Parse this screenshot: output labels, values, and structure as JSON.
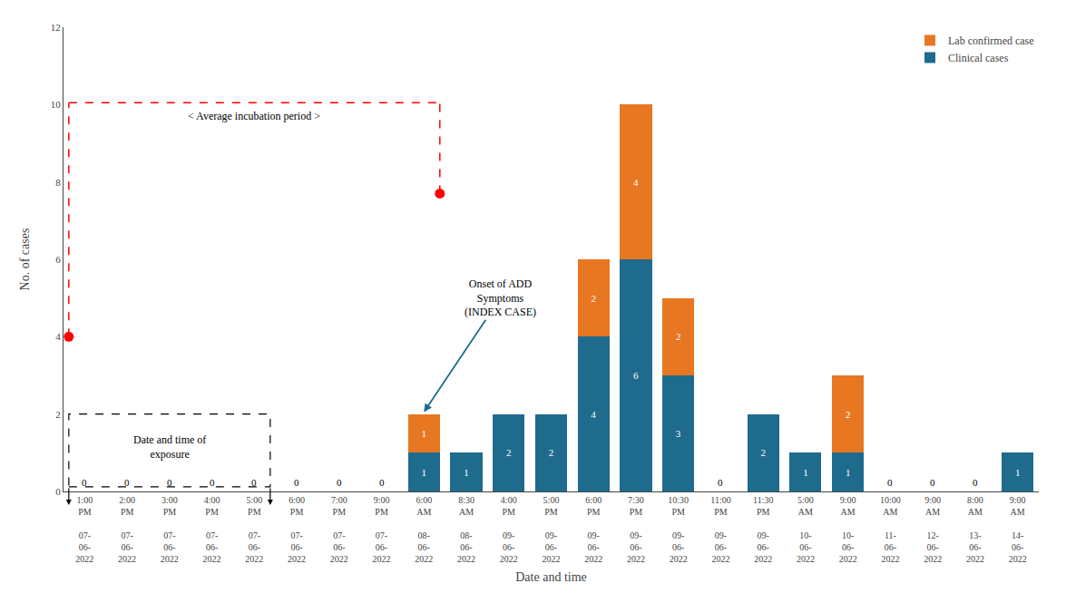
{
  "chart_data": {
    "type": "bar",
    "stacked": true,
    "xlabel": "Date and time",
    "ylabel": "No. of cases",
    "categories": [
      "1:00\nPM\n\n07-\n06-\n2022",
      "2:00\nPM\n\n07-\n06-\n2022",
      "3:00\nPM\n\n07-\n06-\n2022",
      "4:00\nPM\n\n07-\n06-\n2022",
      "5:00\nPM\n\n07-\n06-\n2022",
      "6:00\nPM\n\n07-\n06-\n2022",
      "7:00\nPM\n\n07-\n06-\n2022",
      "9:00\nPM\n\n07-\n06-\n2022",
      "6:00\nAM\n\n08-\n06-\n2022",
      "8:30\nAM\n\n08-\n06-\n2022",
      "4:00\nPM\n\n09-\n06-\n2022",
      "5:00\nPM\n\n09-\n06-\n2022",
      "6:00\nPM\n\n09-\n06-\n2022",
      "7:30\nPM\n\n09-\n06-\n2022",
      "10:30\nPM\n\n09-\n06-\n2022",
      "11:00\nPM\n\n09-\n06-\n2022",
      "11:30\nPM\n\n09-\n06-\n2022",
      "5:00\nAM\n\n10-\n06-\n2022",
      "9:00\nAM\n\n10-\n06-\n2022",
      "10:00\nAM\n\n11-\n06-\n2022",
      "9:00\nAM\n\n12-\n06-\n2022",
      "8:00\nAM\n\n13-\n06-\n2022",
      "9:00\nAM\n\n14-\n06-\n2022"
    ],
    "series": [
      {
        "name": "Clinical cases",
        "color": "#1f6b8e",
        "values": [
          0,
          0,
          0,
          0,
          0,
          0,
          0,
          0,
          1,
          1,
          2,
          2,
          4,
          6,
          3,
          0,
          2,
          1,
          1,
          0,
          0,
          0,
          1
        ]
      },
      {
        "name": "Lab confirmed case",
        "color": "#e87722",
        "values": [
          0,
          0,
          0,
          0,
          0,
          0,
          0,
          0,
          1,
          0,
          0,
          0,
          2,
          4,
          2,
          0,
          0,
          0,
          2,
          0,
          0,
          0,
          0
        ]
      }
    ],
    "ylim": [
      0,
      12
    ],
    "yticks": [
      0,
      2,
      4,
      6,
      8,
      10,
      12
    ],
    "grid": false,
    "legend": "upper right",
    "data_labels": true,
    "annotations": [
      "< Average incubation period >",
      "Date and time of\nexposure",
      "Onset of ADD\nSymptoms\n(INDEX CASE)"
    ]
  }
}
